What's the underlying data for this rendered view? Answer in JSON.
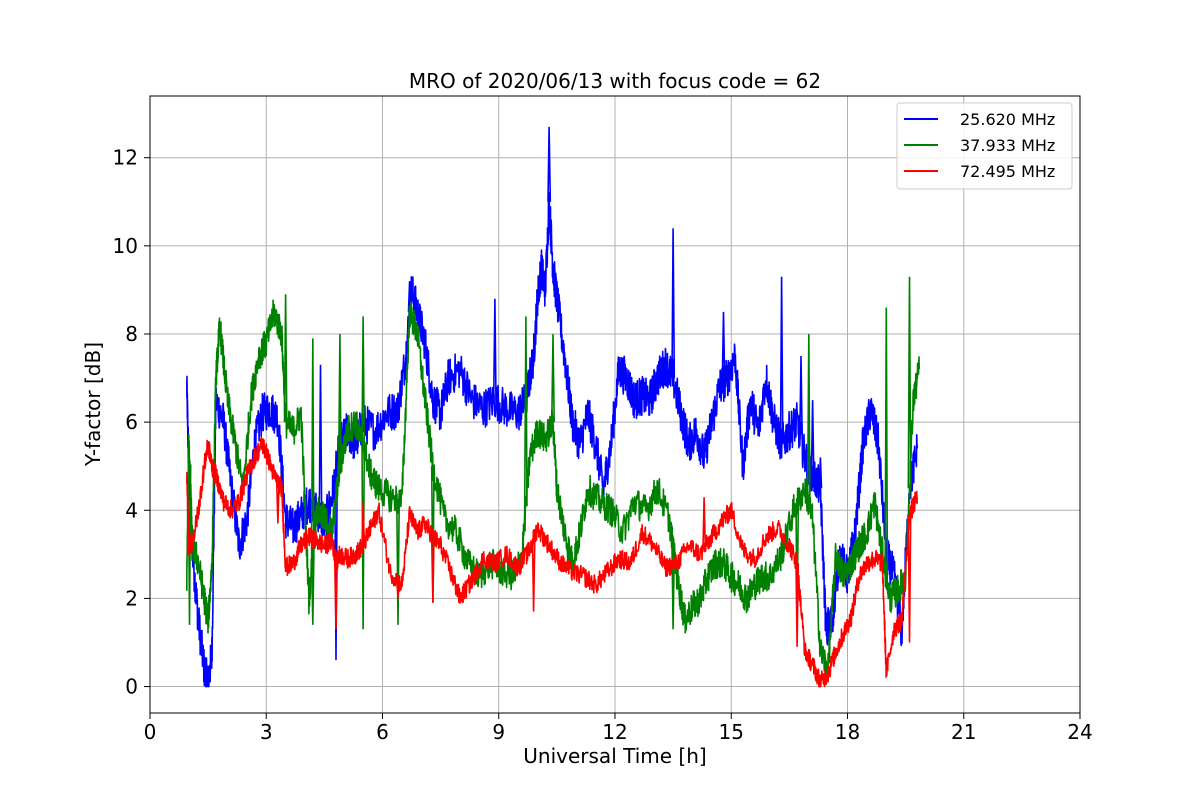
{
  "chart_data": {
    "type": "line",
    "title": "MRO of 2020/06/13 with focus code = 62",
    "xlabel": "Universal Time [h]",
    "ylabel": "Y-factor [dB]",
    "xlim": [
      0,
      24
    ],
    "ylim": [
      -0.6,
      13.4
    ],
    "xticks": [
      0,
      3,
      6,
      9,
      12,
      15,
      18,
      21,
      24
    ],
    "yticks": [
      0,
      2,
      4,
      6,
      8,
      10,
      12
    ],
    "grid": true,
    "legend_position": "top-right",
    "series": [
      {
        "name": "25.620 MHz",
        "color": "#0000ff",
        "x": [
          0.95,
          1.0,
          1.1,
          1.25,
          1.4,
          1.5,
          1.6,
          1.7,
          1.9,
          2.1,
          2.3,
          2.5,
          2.7,
          2.9,
          3.1,
          3.3,
          3.5,
          3.7,
          3.9,
          4.1,
          4.3,
          4.5,
          4.7,
          4.9,
          5.1,
          5.3,
          5.5,
          5.8,
          6.1,
          6.4,
          6.6,
          6.75,
          6.9,
          7.1,
          7.3,
          7.5,
          7.7,
          8.0,
          8.3,
          8.6,
          8.9,
          9.2,
          9.5,
          9.7,
          9.9,
          10.0,
          10.1,
          10.2,
          10.3,
          10.4,
          10.5,
          10.7,
          10.9,
          11.1,
          11.3,
          11.5,
          11.7,
          11.9,
          12.1,
          12.3,
          12.5,
          12.7,
          12.9,
          13.1,
          13.3,
          13.5,
          13.7,
          13.9,
          14.1,
          14.3,
          14.5,
          14.7,
          14.9,
          15.1,
          15.3,
          15.5,
          15.7,
          15.9,
          16.1,
          16.3,
          16.5,
          16.7,
          16.9,
          17.1,
          17.3,
          17.45,
          17.6,
          17.8,
          18.0,
          18.2,
          18.4,
          18.6,
          18.8,
          19.0,
          19.2,
          19.4,
          19.6,
          19.8
        ],
        "y": [
          6.8,
          5.0,
          3.0,
          1.5,
          0.4,
          0.05,
          0.8,
          6.5,
          6.0,
          4.5,
          3.2,
          3.8,
          5.5,
          6.2,
          6.3,
          6.1,
          3.8,
          3.6,
          3.9,
          4.2,
          4.0,
          3.7,
          4.3,
          5.5,
          5.8,
          5.5,
          6.0,
          5.8,
          6.2,
          6.3,
          7.5,
          9.0,
          8.5,
          7.8,
          6.5,
          6.2,
          7.0,
          7.2,
          6.5,
          6.3,
          6.5,
          6.3,
          6.2,
          6.5,
          7.5,
          8.8,
          9.5,
          9.0,
          11.0,
          9.5,
          8.8,
          7.5,
          6.0,
          5.5,
          6.2,
          5.5,
          4.5,
          5.5,
          7.2,
          7.0,
          6.5,
          6.6,
          6.5,
          7.0,
          7.3,
          7.0,
          6.2,
          5.5,
          5.8,
          5.2,
          6.0,
          6.8,
          7.0,
          7.5,
          5.0,
          6.5,
          5.8,
          7.0,
          6.0,
          5.5,
          5.8,
          6.0,
          5.2,
          4.8,
          4.5,
          1.2,
          1.5,
          3.0,
          2.5,
          3.5,
          5.5,
          6.3,
          5.5,
          3.0,
          2.5,
          1.2,
          4.5,
          5.4
        ],
        "spikes": [
          [
            4.4,
            7.3
          ],
          [
            4.8,
            0.6
          ],
          [
            6.7,
            9.2
          ],
          [
            8.9,
            8.8
          ],
          [
            10.3,
            12.7
          ],
          [
            13.5,
            10.4
          ],
          [
            14.8,
            8.5
          ],
          [
            16.3,
            9.3
          ],
          [
            16.8,
            7.5
          ],
          [
            17.1,
            6.5
          ],
          [
            17.3,
            5.2
          ],
          [
            17.5,
            1.8
          ],
          [
            18.6,
            6.5
          ]
        ]
      },
      {
        "name": "37.933 MHz",
        "color": "#008000",
        "x": [
          0.95,
          1.0,
          1.1,
          1.25,
          1.4,
          1.5,
          1.6,
          1.7,
          1.8,
          2.0,
          2.2,
          2.4,
          2.6,
          2.8,
          3.0,
          3.2,
          3.4,
          3.5,
          3.7,
          3.9,
          4.1,
          4.3,
          4.5,
          4.7,
          4.9,
          5.1,
          5.3,
          5.5,
          5.7,
          5.9,
          6.2,
          6.5,
          6.7,
          6.9,
          7.1,
          7.3,
          7.6,
          7.9,
          8.2,
          8.5,
          8.8,
          9.1,
          9.4,
          9.6,
          9.8,
          10.0,
          10.2,
          10.4,
          10.5,
          10.7,
          10.9,
          11.1,
          11.3,
          11.6,
          11.9,
          12.2,
          12.5,
          12.8,
          13.1,
          13.4,
          13.6,
          13.8,
          14.0,
          14.2,
          14.4,
          14.6,
          14.8,
          15.0,
          15.2,
          15.4,
          15.6,
          15.8,
          16.0,
          16.3,
          16.6,
          16.9,
          17.1,
          17.3,
          17.5,
          17.7,
          17.9,
          18.1,
          18.3,
          18.5,
          18.7,
          18.9,
          19.1,
          19.3,
          19.5,
          19.7,
          19.85
        ],
        "y": [
          2.5,
          5.5,
          3.2,
          2.8,
          2.0,
          1.5,
          2.8,
          7.0,
          8.2,
          6.5,
          5.5,
          4.5,
          6.5,
          7.5,
          7.8,
          8.5,
          8.0,
          6.0,
          5.8,
          6.2,
          2.0,
          4.0,
          3.8,
          3.5,
          5.0,
          5.8,
          6.0,
          5.5,
          4.8,
          4.5,
          4.3,
          4.2,
          8.5,
          8.0,
          6.5,
          5.0,
          3.8,
          3.5,
          2.8,
          2.5,
          2.8,
          2.6,
          2.5,
          3.0,
          5.2,
          5.8,
          5.6,
          6.0,
          4.5,
          3.5,
          2.8,
          3.5,
          4.5,
          4.2,
          4.0,
          3.5,
          4.2,
          4.0,
          4.5,
          3.8,
          2.5,
          1.5,
          1.8,
          2.0,
          2.5,
          2.8,
          2.8,
          2.5,
          2.3,
          2.0,
          2.3,
          2.5,
          2.5,
          3.0,
          4.0,
          4.5,
          3.8,
          0.8,
          0.4,
          3.0,
          2.5,
          2.8,
          3.2,
          3.5,
          4.2,
          3.0,
          2.0,
          2.2,
          2.5,
          6.5,
          7.2
        ],
        "spikes": [
          [
            1.02,
            1.4
          ],
          [
            3.5,
            8.9
          ],
          [
            4.2,
            1.4
          ],
          [
            4.2,
            7.9
          ],
          [
            4.9,
            8.0
          ],
          [
            5.5,
            8.4
          ],
          [
            5.5,
            1.3
          ],
          [
            6.4,
            1.4
          ],
          [
            7.3,
            1.9
          ],
          [
            9.7,
            8.4
          ],
          [
            10.4,
            8.0
          ],
          [
            17.0,
            8.0
          ],
          [
            19.0,
            8.6
          ],
          [
            19.6,
            9.3
          ],
          [
            13.5,
            1.3
          ],
          [
            16.7,
            1.4
          ]
        ]
      },
      {
        "name": "72.495 MHz",
        "color": "#ff0000",
        "x": [
          0.95,
          1.0,
          1.1,
          1.25,
          1.4,
          1.5,
          1.6,
          1.7,
          1.9,
          2.1,
          2.3,
          2.5,
          2.7,
          2.9,
          3.0,
          3.2,
          3.4,
          3.5,
          3.7,
          3.9,
          4.1,
          4.3,
          4.5,
          4.7,
          4.8,
          4.9,
          5.1,
          5.3,
          5.5,
          5.7,
          5.9,
          6.2,
          6.5,
          6.7,
          6.9,
          7.1,
          7.3,
          7.5,
          7.8,
          8.0,
          8.3,
          8.6,
          8.9,
          9.2,
          9.5,
          9.8,
          10.0,
          10.3,
          10.6,
          10.9,
          11.2,
          11.5,
          11.8,
          12.1,
          12.4,
          12.7,
          13.0,
          13.3,
          13.6,
          13.9,
          14.2,
          14.5,
          14.8,
          15.0,
          15.3,
          15.6,
          15.9,
          16.2,
          16.5,
          16.7,
          16.9,
          17.1,
          17.3,
          17.5,
          17.7,
          17.9,
          18.1,
          18.3,
          18.5,
          18.7,
          18.9,
          19.0,
          19.2,
          19.4,
          19.6,
          19.8
        ],
        "y": [
          4.8,
          3.2,
          3.3,
          4.0,
          5.0,
          5.5,
          5.0,
          4.8,
          4.2,
          4.0,
          4.2,
          4.8,
          5.2,
          5.5,
          5.3,
          4.8,
          4.5,
          2.7,
          2.8,
          3.2,
          3.4,
          3.3,
          3.2,
          3.3,
          2.8,
          3.0,
          2.9,
          3.0,
          3.2,
          3.6,
          4.0,
          2.6,
          2.3,
          3.9,
          3.5,
          3.7,
          3.4,
          3.2,
          2.5,
          2.0,
          2.4,
          2.9,
          2.8,
          3.0,
          2.7,
          3.1,
          3.6,
          3.2,
          2.8,
          2.6,
          2.5,
          2.3,
          2.6,
          2.9,
          2.8,
          3.5,
          3.2,
          2.7,
          2.8,
          3.2,
          3.0,
          3.4,
          3.8,
          4.0,
          3.1,
          2.9,
          3.4,
          3.6,
          3.2,
          2.8,
          0.8,
          0.5,
          0.1,
          0.3,
          0.8,
          1.2,
          1.6,
          2.5,
          2.8,
          2.9,
          2.8,
          0.3,
          1.3,
          1.5,
          3.9,
          4.3
        ],
        "spikes": [
          [
            3.3,
            3.7
          ],
          [
            4.8,
            1.3
          ],
          [
            5.5,
            4.2
          ],
          [
            6.4,
            2.0
          ],
          [
            7.3,
            1.9
          ],
          [
            9.9,
            1.7
          ],
          [
            14.3,
            4.3
          ],
          [
            16.7,
            0.9
          ],
          [
            18.9,
            3.0
          ],
          [
            19.6,
            1.0
          ]
        ]
      }
    ]
  }
}
